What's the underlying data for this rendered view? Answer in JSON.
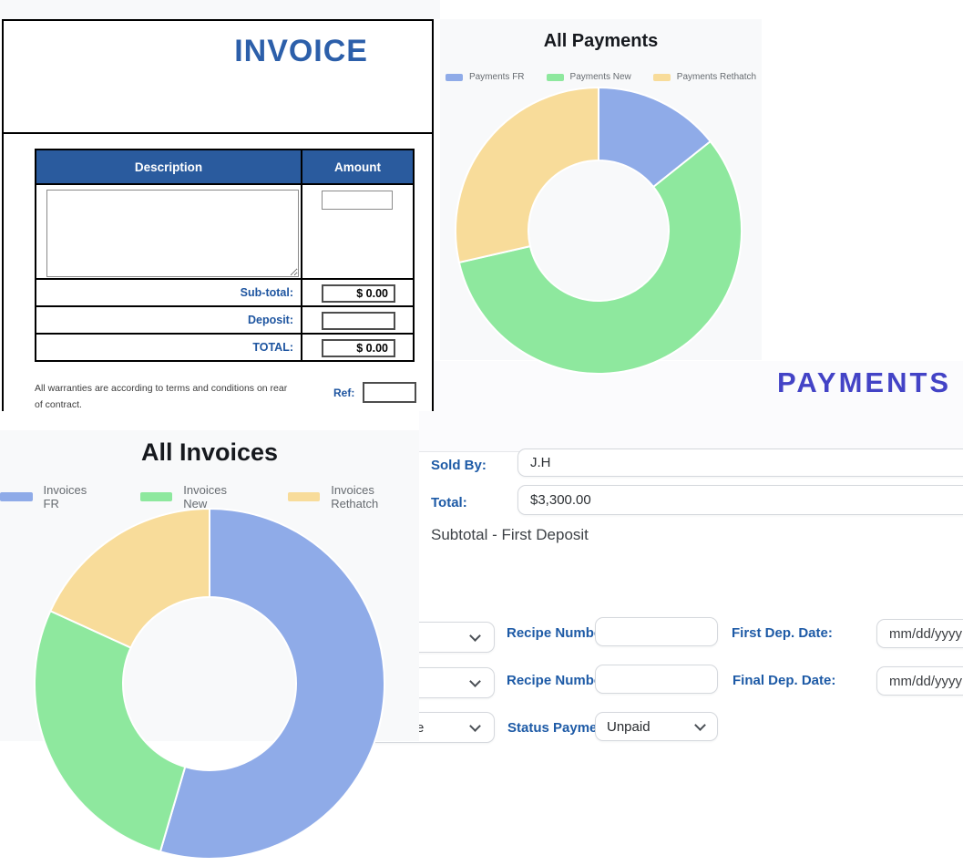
{
  "colors": {
    "accent_label_blue": "#1d5aa6",
    "invoice_header_bg": "#2a5b9e",
    "invoice_title_blue": "#2c5faa",
    "payments_heading_purple": "#4343c6",
    "panel_bg": "#f8f9fa",
    "donut_blue": "#8fabe8",
    "donut_green": "#8ee89e",
    "donut_yellow": "#f8dc9a"
  },
  "invoice": {
    "title": "INVOICE",
    "table": {
      "headers": [
        "Description",
        "Amount"
      ],
      "description_value": "",
      "amount_value": "",
      "rows": [
        {
          "label": "Sub-total:",
          "value": "$ 0.00"
        },
        {
          "label": "Deposit:",
          "value": ""
        },
        {
          "label": "TOTAL:",
          "value": "$ 0.00"
        }
      ]
    },
    "disclaimer": "All warranties are according to terms and conditions on rear of contract.",
    "ref": {
      "label": "Ref:",
      "value": ""
    }
  },
  "chart_data": [
    {
      "type": "pie",
      "variant": "donut",
      "title": "All Payments",
      "legend": [
        "Payments FR",
        "Payments New",
        "Payments Rethatch"
      ],
      "values": [
        1,
        4,
        2
      ],
      "percent_estimate": [
        14.3,
        57.1,
        28.6
      ],
      "colors": [
        "#8fabe8",
        "#8ee89e",
        "#f8dc9a"
      ],
      "legend_position": "top",
      "start_angle_deg": 0,
      "cutout_percent": 49
    },
    {
      "type": "pie",
      "variant": "donut",
      "title": "All Invoices",
      "legend": [
        "Invoices FR",
        "Invoices New",
        "Invoices Rethatch"
      ],
      "values": [
        6,
        3,
        2
      ],
      "percent_estimate": [
        54.5,
        27.3,
        18.2
      ],
      "colors": [
        "#8fabe8",
        "#8ee89e",
        "#f8dc9a"
      ],
      "legend_position": "top",
      "start_angle_deg": 0,
      "cutout_percent": 49
    }
  ],
  "payments": {
    "heading": "PAYMENTS",
    "sold_by_label": "Sold By:",
    "sold_by_value": "J.H",
    "total_label": "Total:",
    "total_value": "$3,300.00",
    "subtotal_note": "Subtotal - First Deposit",
    "left_select_partial_text": "e",
    "rows": [
      {
        "recipe_label": "Recipe Number:",
        "recipe_value": "",
        "date_label": "First Dep. Date:",
        "date_value": "mm/dd/yyyy"
      },
      {
        "recipe_label": "Recipe Number:",
        "recipe_value": "",
        "date_label": "Final Dep. Date:",
        "date_value": "mm/dd/yyyy"
      },
      {
        "status_label": "Status Payment:",
        "status_value": "Unpaid"
      }
    ]
  }
}
